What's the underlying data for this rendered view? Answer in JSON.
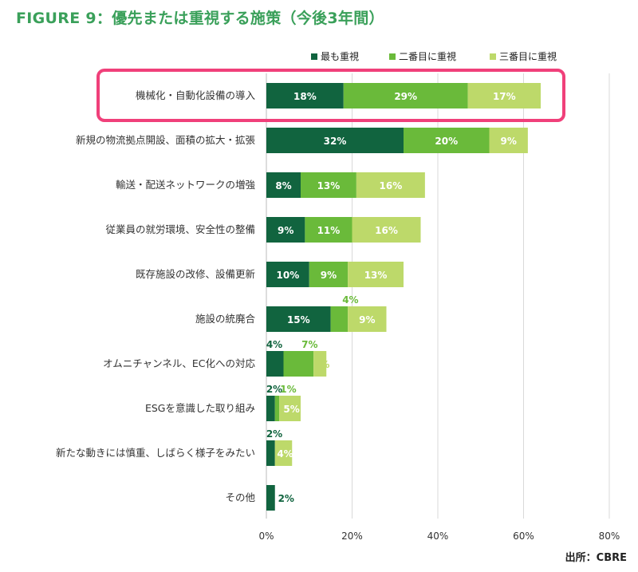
{
  "title": "FIGURE 9：優先または重視する施策（今後3年間）",
  "source": "出所：CBRE",
  "colors": {
    "series1": "#11643f",
    "series2": "#6aba3a",
    "series3": "#bdd96a",
    "title": "#3aa05a",
    "highlight": "#f0407a",
    "grid": "#d9d9d9",
    "text_dark": "#ffffff",
    "text_outside_1": "#11643f",
    "text_outside_2": "#6aba3a",
    "text_outside_3": "#bdd96a"
  },
  "chart_data": {
    "type": "bar",
    "orientation": "horizontal",
    "stacked": true,
    "categories": [
      "機械化・自動化設備の導入",
      "新規の物流拠点開設、面積の拡大・拡張",
      "輸送・配送ネットワークの増強",
      "従業員の就労環境、安全性の整備",
      "既存施設の改修、設備更新",
      "施設の統廃合",
      "オムニチャンネル、EC化への対応",
      "ESGを意識した取り組み",
      "新たな動きには慎重、しばらく様子をみたい",
      "その他"
    ],
    "series": [
      {
        "name": "最も重視",
        "values": [
          18,
          32,
          8,
          9,
          10,
          15,
          4,
          2,
          2,
          2
        ]
      },
      {
        "name": "二番目に重視",
        "values": [
          29,
          20,
          13,
          11,
          9,
          4,
          7,
          1,
          0,
          0
        ]
      },
      {
        "name": "三番目に重視",
        "values": [
          17,
          9,
          16,
          16,
          13,
          9,
          3,
          5,
          4,
          0
        ]
      }
    ],
    "value_labels": [
      [
        "18%",
        "29%",
        "17%"
      ],
      [
        "32%",
        "20%",
        "9%"
      ],
      [
        "8%",
        "13%",
        "16%"
      ],
      [
        "9%",
        "11%",
        "16%"
      ],
      [
        "10%",
        "9%",
        "13%"
      ],
      [
        "15%",
        "4%",
        "9%"
      ],
      [
        "4%",
        "7%",
        "3%"
      ],
      [
        "2%",
        "1%",
        "5%"
      ],
      [
        "2%",
        "",
        "4%"
      ],
      [
        "2%",
        "",
        ""
      ]
    ],
    "xlim": [
      0,
      80
    ],
    "xticks": [
      "0%",
      "20%",
      "40%",
      "60%",
      "80%"
    ],
    "xtick_values": [
      0,
      20,
      40,
      60,
      80
    ],
    "highlighted_category": "機械化・自動化設備の導入",
    "grid": true,
    "legend_position": "top-right"
  }
}
